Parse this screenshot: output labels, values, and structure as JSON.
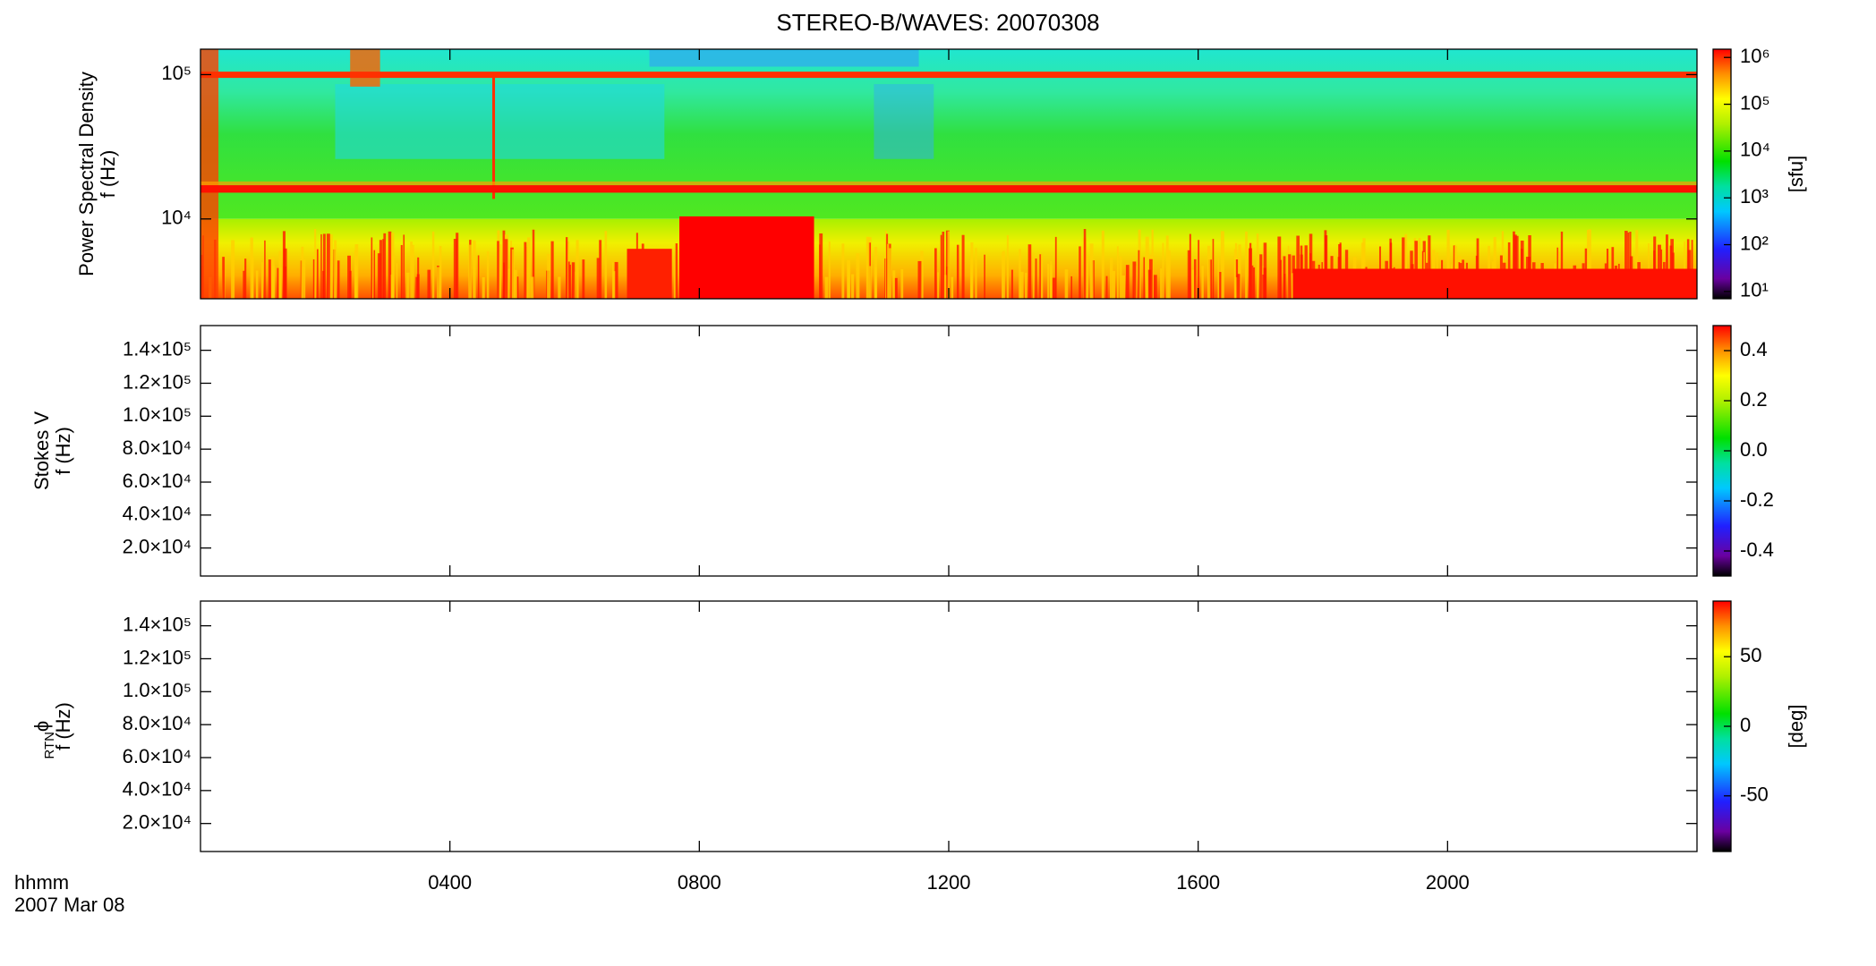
{
  "title": "STEREO-B/WAVES: 20070308",
  "xaxis_label": "hhmm",
  "date_label": "2007 Mar 08",
  "xlim": [
    0,
    24
  ],
  "xticks": [
    {
      "value": 4,
      "label": "0400"
    },
    {
      "value": 8,
      "label": "0800"
    },
    {
      "value": 12,
      "label": "1200"
    },
    {
      "value": 16,
      "label": "1600"
    },
    {
      "value": 20,
      "label": "2000"
    }
  ],
  "chart_data": [
    {
      "type": "spectrogram",
      "ylabel": [
        "Power Spectral Density",
        "f (Hz)"
      ],
      "ylog": true,
      "ylim": [
        2800,
        150000
      ],
      "yticks": [
        {
          "value": 10000,
          "label": "10⁴"
        },
        {
          "value": 100000,
          "label": "10⁵"
        }
      ],
      "colorbar": {
        "log": true,
        "lim": [
          7,
          1500000
        ],
        "ticks": [
          {
            "value": 10,
            "label": "10¹"
          },
          {
            "value": 100,
            "label": "10²"
          },
          {
            "value": 1000,
            "label": "10³"
          },
          {
            "value": 10000,
            "label": "10⁴"
          },
          {
            "value": 100000,
            "label": "10⁵"
          },
          {
            "value": 1000000,
            "label": "10⁶"
          }
        ],
        "label": "[sfu]"
      }
    },
    {
      "type": "empty",
      "ylabel": [
        "Stokes V",
        "f (Hz)"
      ],
      "ylog": false,
      "ylim": [
        3000,
        155000
      ],
      "yticks": [
        {
          "value": 20000,
          "label": "2.0×10⁴"
        },
        {
          "value": 40000,
          "label": "4.0×10⁴"
        },
        {
          "value": 60000,
          "label": "6.0×10⁴"
        },
        {
          "value": 80000,
          "label": "8.0×10⁴"
        },
        {
          "value": 100000,
          "label": "1.0×10⁵"
        },
        {
          "value": 120000,
          "label": "1.2×10⁵"
        },
        {
          "value": 140000,
          "label": "1.4×10⁵"
        }
      ],
      "colorbar": {
        "log": false,
        "lim": [
          -0.5,
          0.5
        ],
        "ticks": [
          -0.4,
          -0.2,
          {
            "value": 0,
            "label": "0.0"
          },
          0.2,
          0.4
        ]
      }
    },
    {
      "type": "empty",
      "ylabel": [
        "ϕ",
        "f (Hz)"
      ],
      "ylabel_sub": "RTN",
      "ylog": false,
      "ylim": [
        3000,
        155000
      ],
      "yticks": [
        {
          "value": 20000,
          "label": "2.0×10⁴"
        },
        {
          "value": 40000,
          "label": "4.0×10⁴"
        },
        {
          "value": 60000,
          "label": "6.0×10⁴"
        },
        {
          "value": 80000,
          "label": "8.0×10⁴"
        },
        {
          "value": 100000,
          "label": "1.0×10⁵"
        },
        {
          "value": 120000,
          "label": "1.2×10⁵"
        },
        {
          "value": 140000,
          "label": "1.4×10⁵"
        }
      ],
      "colorbar": {
        "log": false,
        "lim": [
          -90,
          90
        ],
        "ticks": [
          -50,
          0,
          50
        ],
        "label": "[deg]"
      }
    }
  ]
}
